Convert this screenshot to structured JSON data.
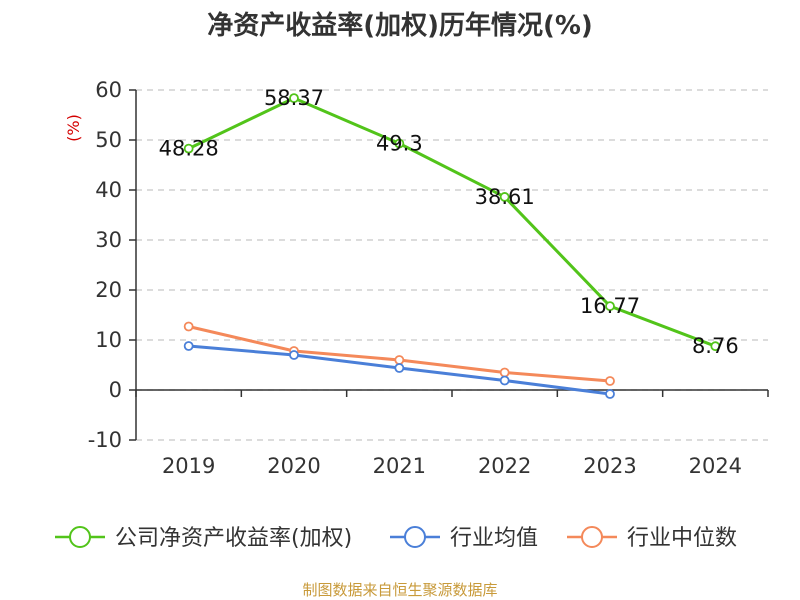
{
  "chart_data": {
    "type": "line",
    "title": "净资产收益率(加权)历年情况(%)",
    "ylabel": "(%)",
    "xlabel": "",
    "categories": [
      "2019",
      "2020",
      "2021",
      "2022",
      "2023",
      "2024"
    ],
    "ylim": [
      -10,
      60
    ],
    "yticks": [
      60,
      50,
      40,
      30,
      20,
      10,
      0,
      -10
    ],
    "grid": true,
    "legend_position": "bottom",
    "series": [
      {
        "name": "公司净资产收益率(加权)",
        "color": "#52c41a",
        "values": [
          48.28,
          58.37,
          49.3,
          38.61,
          16.77,
          8.76
        ],
        "labels": [
          "48.28",
          "58.37",
          "49.3",
          "38.61",
          "16.77",
          "8.76"
        ]
      },
      {
        "name": "行业均值",
        "color": "#4a7fd8",
        "values": [
          8.8,
          7.0,
          4.4,
          1.9,
          -0.8,
          null
        ]
      },
      {
        "name": "行业中位数",
        "color": "#f4895a",
        "values": [
          12.7,
          7.8,
          6.0,
          3.5,
          1.8,
          null
        ]
      }
    ],
    "source": "制图数据来自恒生聚源数据库"
  }
}
